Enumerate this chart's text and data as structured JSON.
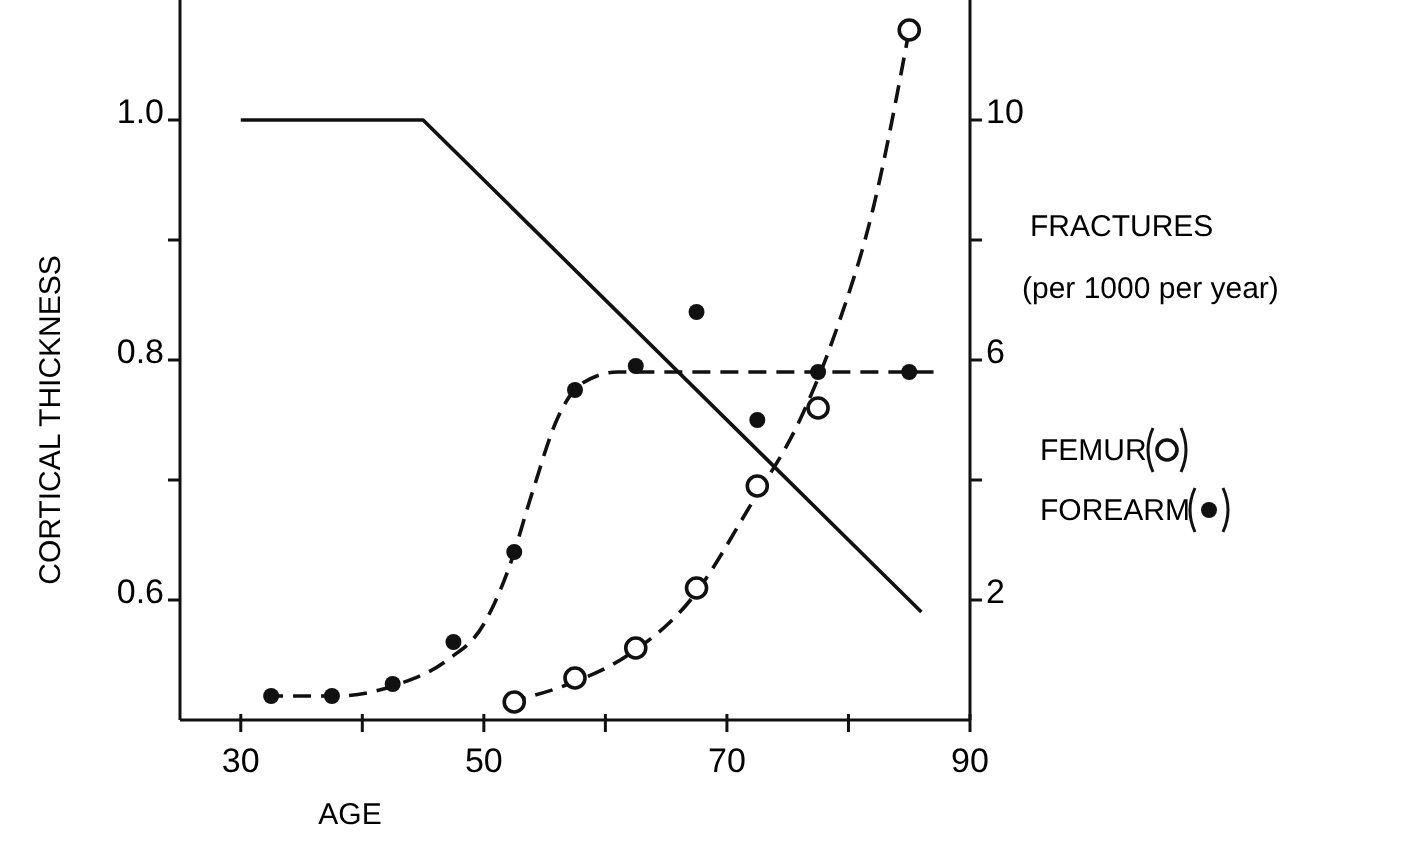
{
  "chart_data": {
    "type": "scatter",
    "xlabel": "AGE",
    "ylabel": "CORTICAL THICKNESS",
    "y2label": "FRACTURES (per 1000 per year)",
    "xlim": [
      25,
      90
    ],
    "xticks": [
      30,
      {
        "value": 40,
        "label": null
      },
      50,
      {
        "value": 60,
        "label": null
      },
      70,
      {
        "value": 80,
        "label": null
      },
      90
    ],
    "ylim": [
      0.5,
      1.1
    ],
    "yticks": [
      0.6,
      {
        "value": 0.7,
        "label": null
      },
      0.8,
      {
        "value": 0.9,
        "label": null
      },
      {
        "value": 1,
        "label": "1.0"
      }
    ],
    "y2lim": [
      0,
      12
    ],
    "y2ticks": [
      2,
      {
        "value": 4,
        "label": null
      },
      6,
      {
        "value": 8,
        "label": null
      },
      10
    ],
    "grid": false,
    "legend": "right",
    "marker": "circle",
    "series": [
      {
        "type": "line",
        "color": "#111111",
        "line_style": "solid",
        "marker": "none",
        "x": [
          30,
          45,
          86
        ],
        "values": [
          1.0,
          1.0,
          0.59
        ]
      },
      {
        "type": "line",
        "axis": "y2",
        "color": "#111111",
        "line_style": "dashed",
        "marker": "none",
        "x": [
          32,
          38,
          43,
          47,
          50,
          52,
          54,
          56,
          58,
          61,
          65,
          75,
          87
        ],
        "values": [
          0.4,
          0.4,
          0.6,
          1.0,
          1.6,
          2.5,
          3.8,
          5.0,
          5.6,
          5.8,
          5.8,
          5.8,
          5.8
        ]
      },
      {
        "type": "line",
        "axis": "y2",
        "color": "#111111",
        "line_style": "dashed",
        "marker": "none",
        "x": [
          52,
          57,
          62,
          67,
          72,
          76,
          79,
          82,
          85
        ],
        "values": [
          0.3,
          0.6,
          1.1,
          2.0,
          3.6,
          5.0,
          6.5,
          8.5,
          11.5
        ]
      },
      {
        "name": "FEMUR",
        "axis": "y2",
        "color": "#111111",
        "marker": "open-circle",
        "x": [
          52.5,
          57.5,
          62.5,
          67.5,
          72.5,
          77.5,
          85
        ],
        "values": [
          0.3,
          0.7,
          1.2,
          2.2,
          3.9,
          5.2,
          11.5
        ]
      },
      {
        "name": "FOREARM",
        "axis": "y2",
        "color": "#111111",
        "x": [
          32.5,
          37.5,
          42.5,
          47.5,
          52.5,
          57.5,
          62.5,
          67.5,
          72.5,
          77.5,
          85
        ],
        "values": [
          0.4,
          0.4,
          0.6,
          1.3,
          2.8,
          5.5,
          5.9,
          6.8,
          5.0,
          5.8,
          5.8
        ]
      }
    ]
  }
}
